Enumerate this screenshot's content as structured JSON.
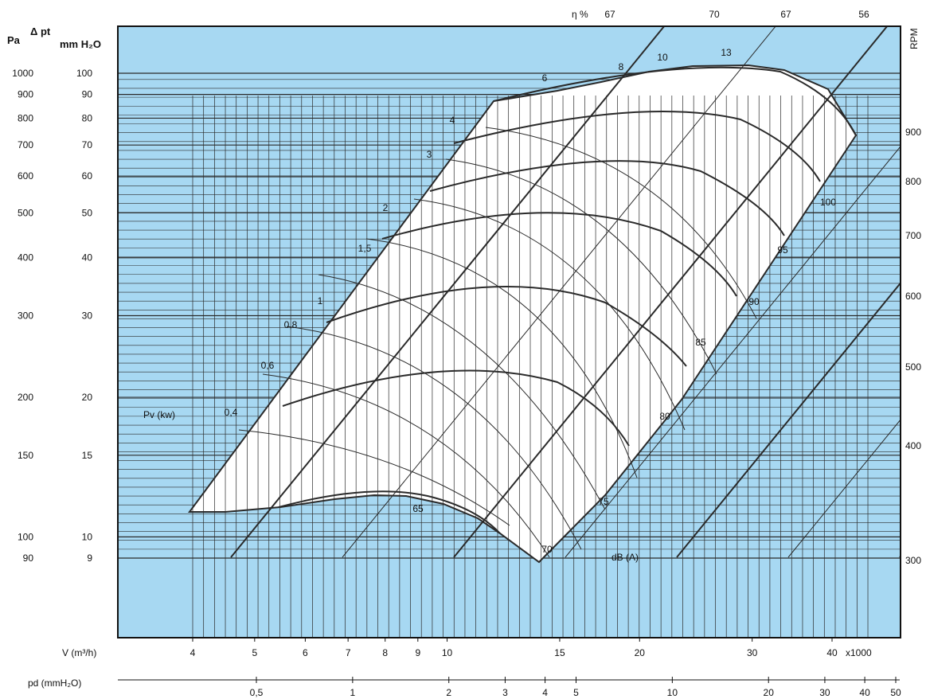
{
  "chart_data": {
    "type": "line",
    "title": "",
    "colors": {
      "background": "#a7d8f2",
      "envelope": "#ffffff",
      "lines": "#2a2a2a",
      "frame": "#111111"
    },
    "left_axis": {
      "pa_header": "Pa",
      "dpt_header": "Δ pt",
      "mmh2o_header": "mm H₂O",
      "scale": "log",
      "ticks": [
        {
          "pa": "1000",
          "mm": "100"
        },
        {
          "pa": "900",
          "mm": "90"
        },
        {
          "pa": "800",
          "mm": "80"
        },
        {
          "pa": "700",
          "mm": "70"
        },
        {
          "pa": "600",
          "mm": "60"
        },
        {
          "pa": "500",
          "mm": "50"
        },
        {
          "pa": "400",
          "mm": "40"
        },
        {
          "pa": "300",
          "mm": "30"
        },
        {
          "pa": "200",
          "mm": "20"
        },
        {
          "pa": "150",
          "mm": "15"
        },
        {
          "pa": "100",
          "mm": "10"
        },
        {
          "pa": "90",
          "mm": "9"
        }
      ]
    },
    "right_axis": {
      "label": "RPM",
      "ticks": [
        "900",
        "800",
        "700",
        "600",
        "500",
        "400",
        "300"
      ]
    },
    "x_axis": {
      "label": "V (m³/h)",
      "scale": "log",
      "ticks": [
        "4",
        "5",
        "6",
        "7",
        "8",
        "9",
        "10",
        "15",
        "20",
        "30",
        "40"
      ],
      "multiplier": "x1000"
    },
    "pd_axis": {
      "label": "pd (mmH₂O)",
      "ticks": [
        "0,5",
        "1",
        "2",
        "3",
        "4",
        "5",
        "10",
        "20",
        "30",
        "40",
        "50"
      ]
    },
    "efficiency": {
      "label": "η %",
      "values": [
        "67",
        "70",
        "67",
        "56"
      ]
    },
    "power": {
      "label": "Pv (kw)",
      "values": [
        "0,4",
        "0,6",
        "0,8",
        "1",
        "1,5",
        "2",
        "3",
        "4",
        "6",
        "8",
        "10",
        "13"
      ]
    },
    "noise": {
      "unit": "dB (A)",
      "values": [
        "65",
        "70",
        "75",
        "80",
        "85",
        "90",
        "95",
        "100"
      ]
    }
  }
}
